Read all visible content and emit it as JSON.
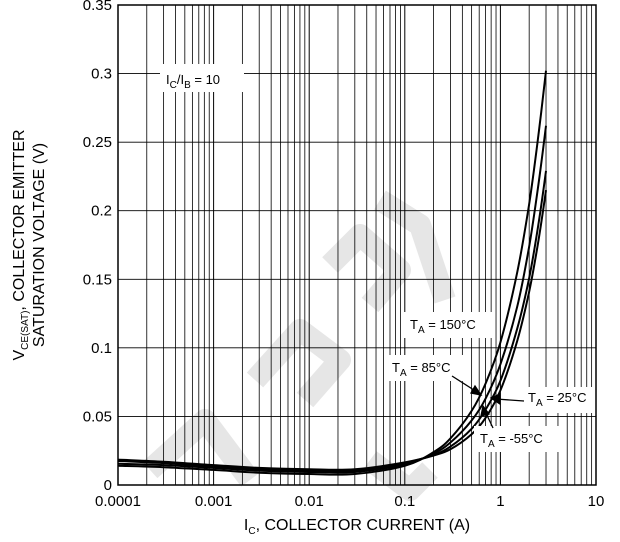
{
  "chart_data": {
    "type": "line",
    "x_scale": "log",
    "xlim": [
      0.0001,
      10
    ],
    "ylim": [
      0,
      0.35
    ],
    "x_ticks": [
      {
        "value": 0.0001,
        "label": "0.0001"
      },
      {
        "value": 0.001,
        "label": "0.001"
      },
      {
        "value": 0.01,
        "label": "0.01"
      },
      {
        "value": 0.1,
        "label": "0.1"
      },
      {
        "value": 1,
        "label": "1"
      },
      {
        "value": 10,
        "label": "10"
      }
    ],
    "y_ticks": [
      {
        "value": 0,
        "label": "0"
      },
      {
        "value": 0.05,
        "label": "0.05"
      },
      {
        "value": 0.1,
        "label": "0.1"
      },
      {
        "value": 0.15,
        "label": "0.15"
      },
      {
        "value": 0.2,
        "label": "0.2"
      },
      {
        "value": 0.25,
        "label": "0.25"
      },
      {
        "value": 0.3,
        "label": "0.3"
      },
      {
        "value": 0.35,
        "label": "0.35"
      }
    ],
    "xlabel": {
      "main": "I",
      "sub": "C",
      "rest": ", COLLECTOR CURRENT (A)"
    },
    "ylabel": {
      "line1_main": "V",
      "line1_sub": "CE(SAT)",
      "line1_rest": ", COLLECTOR EMITTER",
      "line2": "SATURATION VOLTAGE (V)"
    },
    "condition": {
      "i1": "I",
      "s1": "C",
      "slash": "/I",
      "s2": "B",
      "rest": " = 10"
    },
    "grid": true,
    "series": [
      {
        "name": "T_A = 150°C",
        "label": {
          "main": "T",
          "sub": "A",
          "rest": " = 150°C"
        },
        "x": [
          0.0001,
          0.0003,
          0.001,
          0.003,
          0.01,
          0.03,
          0.1,
          0.2,
          0.3,
          0.5,
          0.7,
          1,
          1.5,
          2,
          2.5,
          3
        ],
        "y": [
          0.014,
          0.013,
          0.011,
          0.009,
          0.008,
          0.008,
          0.014,
          0.024,
          0.034,
          0.054,
          0.074,
          0.104,
          0.155,
          0.205,
          0.255,
          0.302
        ]
      },
      {
        "name": "T_A = 85°C",
        "label": {
          "main": "T",
          "sub": "A",
          "rest": " = 85°C"
        },
        "x": [
          0.0001,
          0.0003,
          0.001,
          0.003,
          0.01,
          0.03,
          0.1,
          0.2,
          0.3,
          0.5,
          0.7,
          1,
          1.5,
          2,
          2.5,
          3
        ],
        "y": [
          0.0155,
          0.0145,
          0.0125,
          0.0105,
          0.0095,
          0.0095,
          0.015,
          0.023,
          0.031,
          0.047,
          0.063,
          0.088,
          0.13,
          0.174,
          0.219,
          0.262
        ]
      },
      {
        "name": "T_A = 25°C",
        "label": {
          "main": "T",
          "sub": "A",
          "rest": " = 25°C"
        },
        "x": [
          0.0001,
          0.0003,
          0.001,
          0.003,
          0.01,
          0.03,
          0.1,
          0.2,
          0.3,
          0.5,
          0.7,
          1,
          1.5,
          2,
          2.5,
          3
        ],
        "y": [
          0.0175,
          0.016,
          0.0135,
          0.0115,
          0.0105,
          0.0105,
          0.016,
          0.022,
          0.028,
          0.041,
          0.055,
          0.076,
          0.114,
          0.151,
          0.19,
          0.229
        ]
      },
      {
        "name": "T_A = -55°C",
        "label": {
          "main": "T",
          "sub": "A",
          "rest": " = -55°C"
        },
        "x": [
          0.0001,
          0.0003,
          0.001,
          0.003,
          0.01,
          0.03,
          0.1,
          0.2,
          0.3,
          0.5,
          0.7,
          1,
          1.5,
          2,
          2.5,
          3
        ],
        "y": [
          0.0185,
          0.017,
          0.0145,
          0.0125,
          0.0115,
          0.0115,
          0.0165,
          0.0215,
          0.026,
          0.037,
          0.049,
          0.069,
          0.105,
          0.141,
          0.178,
          0.215
        ]
      }
    ]
  }
}
